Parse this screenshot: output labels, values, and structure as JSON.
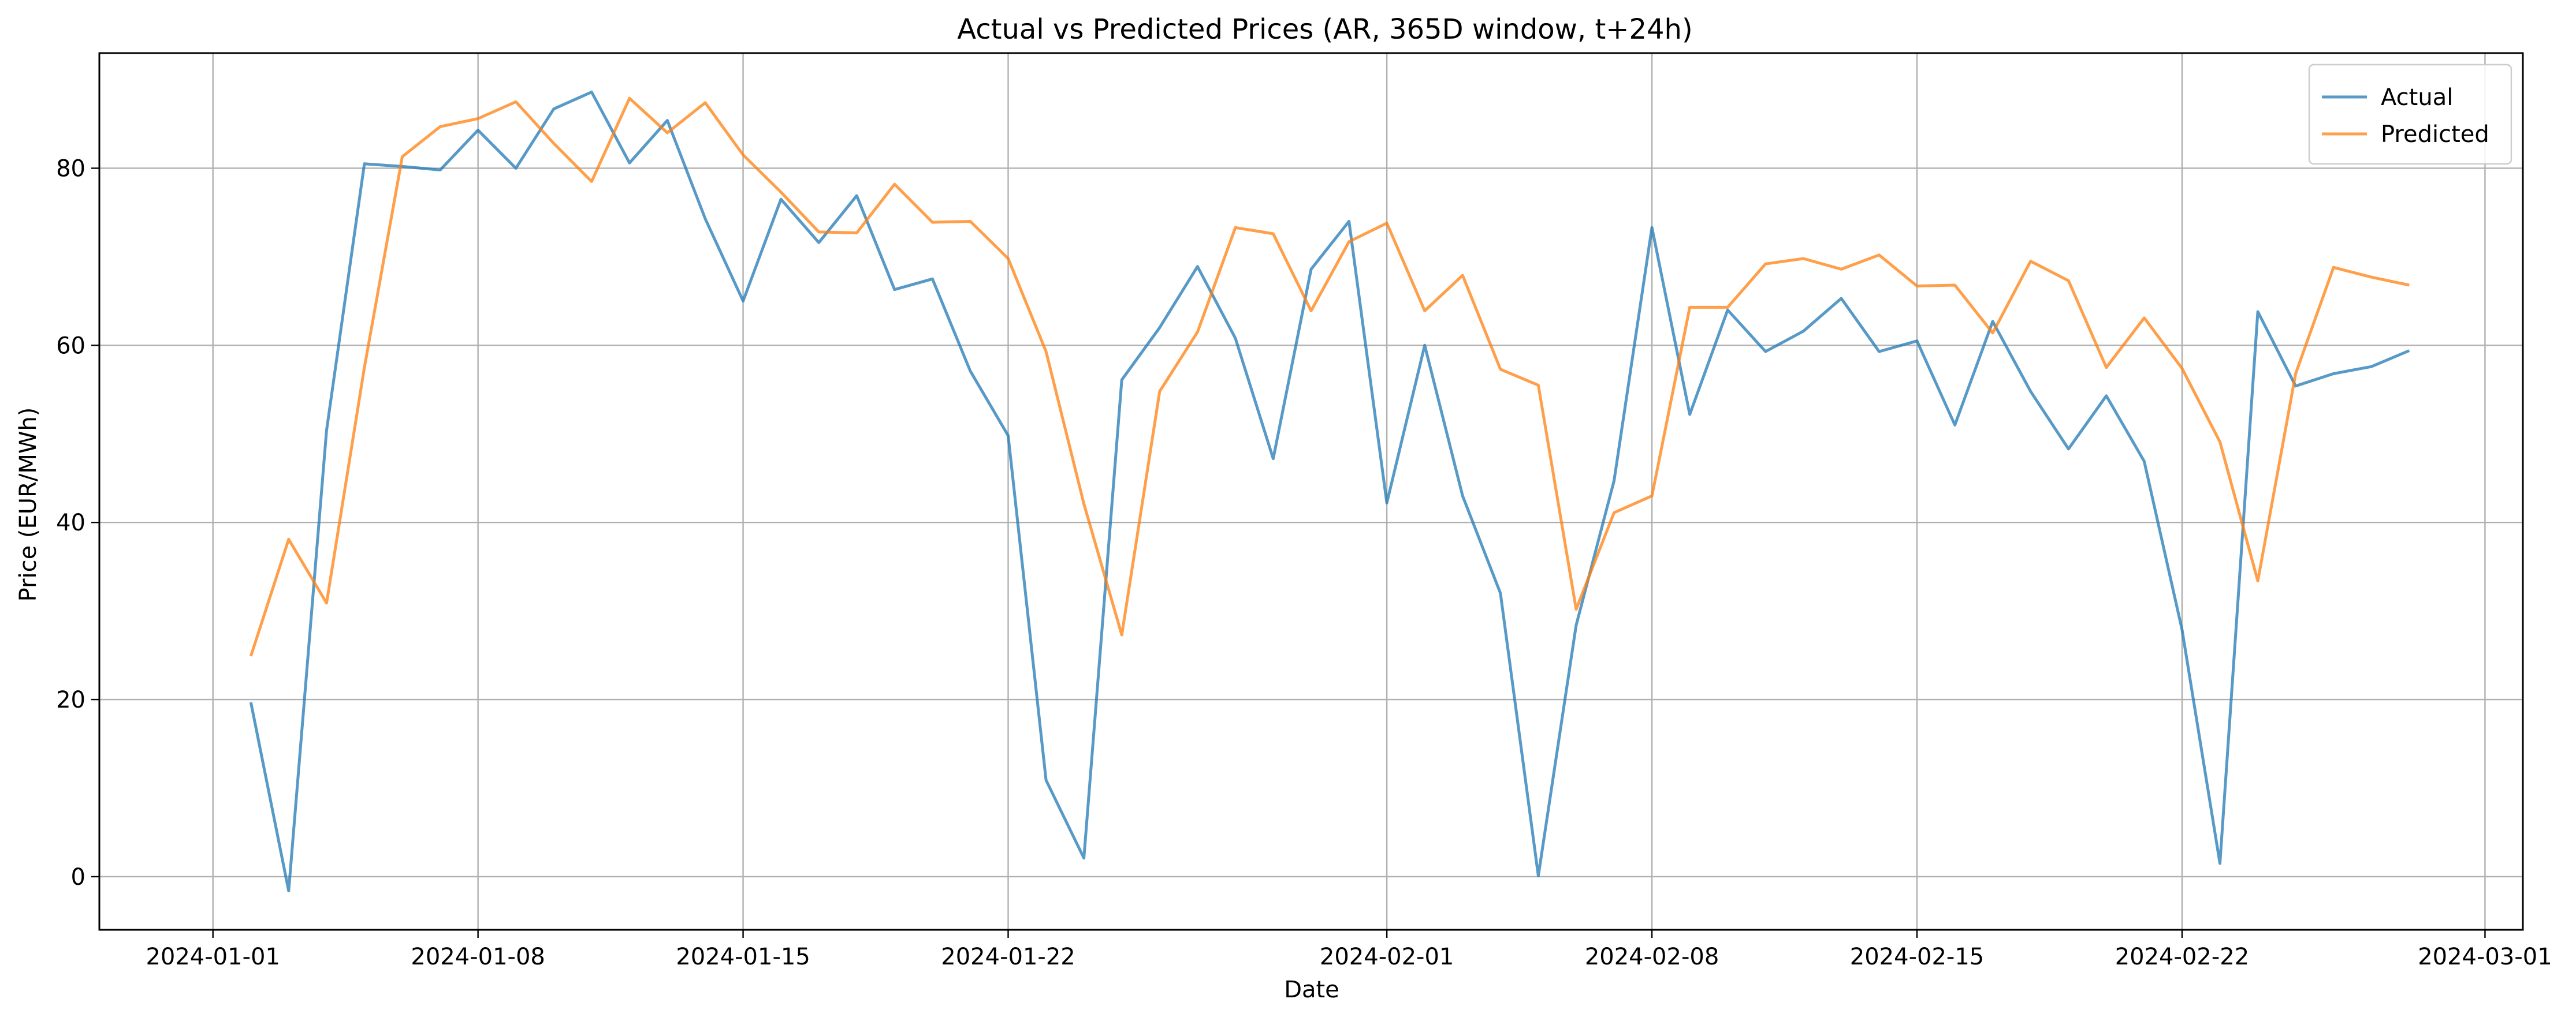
{
  "chart_data": {
    "type": "line",
    "title": "Actual vs Predicted Prices (AR, 365D window, t+24h)",
    "xlabel": "Date",
    "ylabel": "Price (EUR/MWh)",
    "xlim": [
      "2023-12-29",
      "2024-03-02"
    ],
    "ylim": [
      -6,
      93
    ],
    "xticks": [
      "2024-01-01",
      "2024-01-08",
      "2024-01-15",
      "2024-01-22",
      "2024-02-01",
      "2024-02-08",
      "2024-02-15",
      "2024-02-22",
      "2024-03-01"
    ],
    "yticks": [
      0,
      20,
      40,
      60,
      80
    ],
    "grid": true,
    "legend_position": "top-right",
    "x": [
      "2024-01-02",
      "2024-01-03",
      "2024-01-04",
      "2024-01-05",
      "2024-01-06",
      "2024-01-07",
      "2024-01-08",
      "2024-01-09",
      "2024-01-10",
      "2024-01-11",
      "2024-01-12",
      "2024-01-13",
      "2024-01-14",
      "2024-01-15",
      "2024-01-16",
      "2024-01-17",
      "2024-01-18",
      "2024-01-19",
      "2024-01-20",
      "2024-01-21",
      "2024-01-22",
      "2024-01-23",
      "2024-01-24",
      "2024-01-25",
      "2024-01-26",
      "2024-01-27",
      "2024-01-28",
      "2024-01-29",
      "2024-01-30",
      "2024-01-31",
      "2024-02-01",
      "2024-02-02",
      "2024-02-03",
      "2024-02-04",
      "2024-02-05",
      "2024-02-06",
      "2024-02-07",
      "2024-02-08",
      "2024-02-09",
      "2024-02-10",
      "2024-02-11",
      "2024-02-12",
      "2024-02-13",
      "2024-02-14",
      "2024-02-15",
      "2024-02-16",
      "2024-02-17",
      "2024-02-18",
      "2024-02-19",
      "2024-02-20",
      "2024-02-21",
      "2024-02-22",
      "2024-02-23",
      "2024-02-24",
      "2024-02-25",
      "2024-02-26",
      "2024-02-27",
      "2024-02-28"
    ],
    "series": [
      {
        "name": "Actual",
        "color": "#1f77b4",
        "values": [
          19.7,
          -1.6,
          50.4,
          80.5,
          80.2,
          79.8,
          84.3,
          80.0,
          86.7,
          88.6,
          80.6,
          85.4,
          74.3,
          65.0,
          76.5,
          71.6,
          76.9,
          66.3,
          67.5,
          57.1,
          49.8,
          10.9,
          2.1,
          56.1,
          62.0,
          68.9,
          60.8,
          47.2,
          68.6,
          74.0,
          42.2,
          60.0,
          43.0,
          32.0,
          0.1,
          28.4,
          44.7,
          73.3,
          52.2,
          64.0,
          59.3,
          61.6,
          65.3,
          59.3,
          60.5,
          51.0,
          62.7,
          54.8,
          48.3,
          54.3,
          46.9,
          27.9,
          1.5,
          63.8,
          55.4,
          56.8,
          57.6,
          59.4
        ]
      },
      {
        "name": "Predicted",
        "color": "#ff7f0e",
        "values": [
          24.9,
          38.1,
          30.9,
          57.5,
          81.3,
          84.7,
          85.6,
          87.5,
          82.8,
          78.5,
          87.9,
          84.0,
          87.4,
          81.5,
          77.3,
          72.8,
          72.7,
          78.2,
          73.9,
          74.0,
          69.8,
          59.3,
          42.1,
          27.3,
          54.8,
          61.5,
          73.3,
          72.6,
          63.9,
          71.7,
          73.8,
          63.9,
          67.9,
          57.3,
          55.5,
          30.2,
          41.1,
          43.0,
          64.3,
          64.3,
          69.2,
          69.8,
          68.6,
          70.2,
          66.7,
          66.8,
          61.4,
          69.5,
          67.3,
          57.5,
          63.1,
          57.4,
          49.1,
          33.4,
          56.8,
          68.8,
          67.7,
          66.8
        ]
      }
    ]
  }
}
